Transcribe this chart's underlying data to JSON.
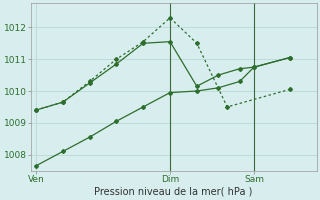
{
  "background_color": "#d8eeee",
  "grid_color": "#b8d8d8",
  "line_color": "#2d6e2d",
  "xlabel": "Pression niveau de la mer( hPa )",
  "ylim": [
    1007.5,
    1012.75
  ],
  "yticks": [
    1008,
    1009,
    1010,
    1011,
    1012
  ],
  "xlim": [
    0,
    16
  ],
  "xtick_labels": [
    "Ven",
    "Dim",
    "Sam"
  ],
  "xtick_positions": [
    0.3,
    7.8,
    12.5
  ],
  "vline_positions": [
    7.8,
    12.5
  ],
  "line1_x": [
    0.3,
    1.8,
    3.3,
    4.8,
    6.3,
    7.8,
    9.3,
    10.5,
    11.7,
    12.5,
    14.5
  ],
  "line1_y": [
    1009.4,
    1009.65,
    1010.25,
    1010.85,
    1011.5,
    1011.55,
    1010.15,
    1010.5,
    1010.7,
    1010.75,
    1011.05
  ],
  "line2_x": [
    0.3,
    1.8,
    3.3,
    4.8,
    6.3,
    7.8,
    9.3,
    10.5,
    11.7,
    12.5,
    14.5
  ],
  "line2_y": [
    1007.65,
    1008.1,
    1008.55,
    1009.05,
    1009.5,
    1009.95,
    1010.0,
    1010.1,
    1010.3,
    1010.75,
    1011.05
  ],
  "line3_x": [
    0.3,
    1.8,
    3.3,
    4.8,
    6.3,
    7.8,
    9.3,
    11.0,
    14.5
  ],
  "line3_y": [
    1009.4,
    1009.65,
    1010.3,
    1011.0,
    1011.55,
    1012.3,
    1011.5,
    1009.5,
    1010.05
  ],
  "figsize": [
    3.2,
    2.0
  ],
  "dpi": 100
}
